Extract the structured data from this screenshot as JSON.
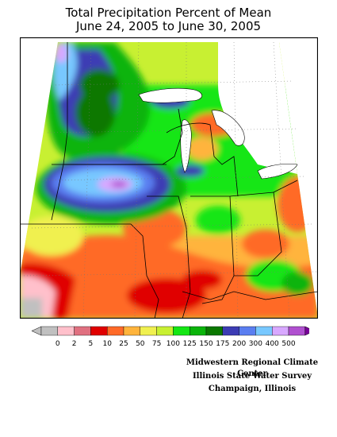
{
  "title": {
    "line1": "Total Precipitation Percent of Mean",
    "line2": "June 24, 2005 to June 30, 2005"
  },
  "legend": {
    "labels": [
      "0",
      "2",
      "5",
      "10",
      "25",
      "50",
      "75",
      "100",
      "125",
      "150",
      "175",
      "200",
      "300",
      "400",
      "500"
    ],
    "colors": [
      "#c0c0c0",
      "#ffc0cb",
      "#e07080",
      "#e00000",
      "#ff6a28",
      "#ffb43c",
      "#f0f050",
      "#c8f032",
      "#14e614",
      "#0ab40a",
      "#0a7800",
      "#3c3cb4",
      "#5a7ef0",
      "#78c8ff",
      "#d8a8ff",
      "#b050d0",
      "#780098"
    ]
  },
  "credits": {
    "line1": "Midwestern Regional Climate Center",
    "line2": "Illinois State Water Survey",
    "line3": "Champaign, Illinois"
  },
  "map_colors": {
    "frame": "#000000",
    "border": "#000000",
    "lake": "#ffffff"
  }
}
